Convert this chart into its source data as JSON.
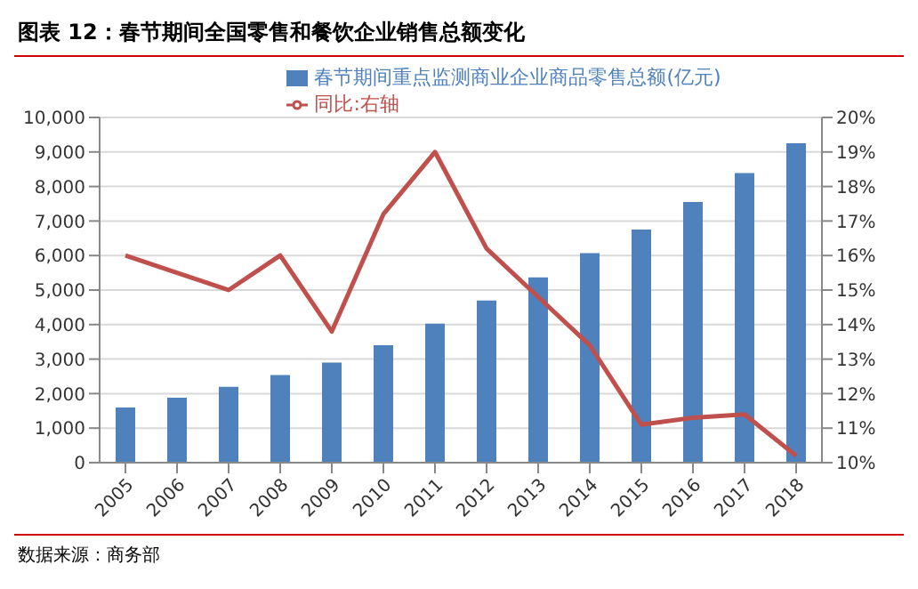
{
  "chart_data": {
    "type": "bar",
    "title": "图表 12：春节期间全国零售和餐饮企业销售总额变化",
    "categories": [
      "2005",
      "2006",
      "2007",
      "2008",
      "2009",
      "2010",
      "2011",
      "2012",
      "2013",
      "2014",
      "2015",
      "2016",
      "2017",
      "2018"
    ],
    "series": [
      {
        "name": "春节期间重点监测商业企业商品零售总额(亿元)",
        "color": "#4f81bd",
        "values": [
          1600,
          1880,
          2200,
          2540,
          2900,
          3400,
          4030,
          4700,
          5370,
          6070,
          6750,
          7550,
          8390,
          9250
        ]
      },
      {
        "name": "同比:右轴",
        "type": "line",
        "axis": "y2",
        "color": "#c0504d",
        "values": [
          16,
          15.5,
          15,
          16,
          13.8,
          17.2,
          19,
          16.2,
          14.8,
          13.4,
          11.1,
          11.3,
          11.4,
          10.2
        ]
      }
    ],
    "ylim": [
      0,
      10000
    ],
    "yticks": [
      {
        "value": 0,
        "label": "0"
      },
      {
        "value": 1000,
        "label": "1,000"
      },
      {
        "value": 2000,
        "label": "2,000"
      },
      {
        "value": 3000,
        "label": "3,000"
      },
      {
        "value": 4000,
        "label": "4,000"
      },
      {
        "value": 5000,
        "label": "5,000"
      },
      {
        "value": 6000,
        "label": "6,000"
      },
      {
        "value": 7000,
        "label": "7,000"
      },
      {
        "value": 8000,
        "label": "8,000"
      },
      {
        "value": 9000,
        "label": "9,000"
      },
      {
        "value": 10000,
        "label": "10,000"
      }
    ],
    "y2lim": [
      10,
      20
    ],
    "y2ticks": [
      {
        "value": 10,
        "label": "10%"
      },
      {
        "value": 11,
        "label": "11%"
      },
      {
        "value": 12,
        "label": "12%"
      },
      {
        "value": 13,
        "label": "13%"
      },
      {
        "value": 14,
        "label": "14%"
      },
      {
        "value": 15,
        "label": "15%"
      },
      {
        "value": 16,
        "label": "16%"
      },
      {
        "value": 17,
        "label": "17%"
      },
      {
        "value": 18,
        "label": "18%"
      },
      {
        "value": 19,
        "label": "19%"
      },
      {
        "value": 20,
        "label": "20%"
      }
    ],
    "grid": "y",
    "legend": "top",
    "marker": "none",
    "line_style": "solid",
    "annotations": [
      "数据来源：商务部"
    ]
  }
}
